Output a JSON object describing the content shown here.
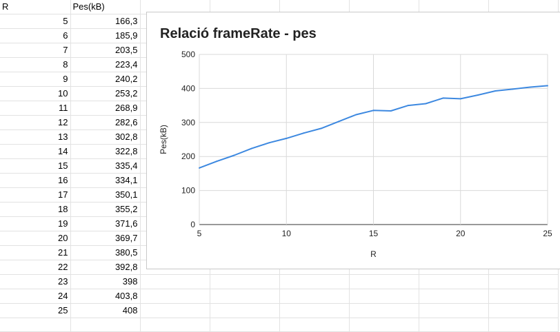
{
  "sheet": {
    "headers": [
      "R",
      "Pes(kB)"
    ],
    "rows": [
      [
        "5",
        "166,3"
      ],
      [
        "6",
        "185,9"
      ],
      [
        "7",
        "203,5"
      ],
      [
        "8",
        "223,4"
      ],
      [
        "9",
        "240,2"
      ],
      [
        "10",
        "253,2"
      ],
      [
        "11",
        "268,9"
      ],
      [
        "12",
        "282,6"
      ],
      [
        "13",
        "302,8"
      ],
      [
        "14",
        "322,8"
      ],
      [
        "15",
        "335,4"
      ],
      [
        "16",
        "334,1"
      ],
      [
        "17",
        "350,1"
      ],
      [
        "18",
        "355,2"
      ],
      [
        "19",
        "371,6"
      ],
      [
        "20",
        "369,7"
      ],
      [
        "21",
        "380,5"
      ],
      [
        "22",
        "392,8"
      ],
      [
        "23",
        "398"
      ],
      [
        "24",
        "403,8"
      ],
      [
        "25",
        "408"
      ]
    ]
  },
  "chart_data": {
    "type": "line",
    "title": "Relació frameRate - pes",
    "xlabel": "R",
    "ylabel": "Pes(kB)",
    "xlim": [
      5,
      25
    ],
    "ylim": [
      0,
      500
    ],
    "xticks": [
      "5",
      "10",
      "15",
      "20",
      "25"
    ],
    "yticks": [
      "0",
      "100",
      "200",
      "300",
      "400",
      "500"
    ],
    "grid": true,
    "legend": "none",
    "series": [
      {
        "color": "#3c88e0",
        "x": [
          5,
          6,
          7,
          8,
          9,
          10,
          11,
          12,
          13,
          14,
          15,
          16,
          17,
          18,
          19,
          20,
          21,
          22,
          23,
          24,
          25
        ],
        "y": [
          166.3,
          185.9,
          203.5,
          223.4,
          240.2,
          253.2,
          268.9,
          282.6,
          302.8,
          322.8,
          335.4,
          334.1,
          350.1,
          355.2,
          371.6,
          369.7,
          380.5,
          392.8,
          398,
          403.8,
          408
        ]
      }
    ]
  }
}
